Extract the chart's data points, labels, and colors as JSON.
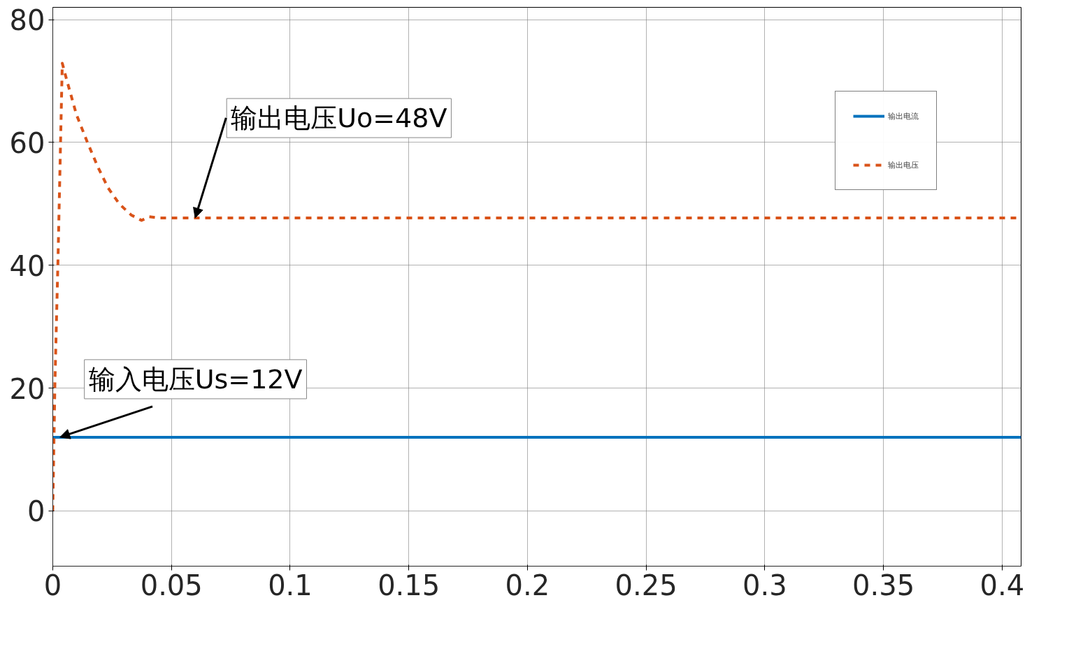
{
  "chart_data": {
    "type": "line",
    "xlim": [
      0,
      0.408
    ],
    "ylim": [
      -9,
      82
    ],
    "xticks": [
      0,
      0.05,
      0.1,
      0.15,
      0.2,
      0.25,
      0.3,
      0.35,
      0.4
    ],
    "yticks": [
      0,
      20,
      40,
      60,
      80
    ],
    "grid": true,
    "legend": "top right",
    "marker": "none",
    "series": [
      {
        "name": "输出电流",
        "color": "#0072bd",
        "line_style": "solid",
        "x": [
          0,
          0.408
        ],
        "values": [
          12,
          12
        ]
      },
      {
        "name": "输出电压",
        "color": "#d95319",
        "line_style": "dashed",
        "x": [
          0,
          0.0009,
          0.0022,
          0.004,
          0.006,
          0.01,
          0.0145,
          0.019,
          0.0233,
          0.028,
          0.033,
          0.0374,
          0.0405,
          0.045,
          0.408
        ],
        "values": [
          0,
          21,
          41,
          72.9,
          70,
          64.5,
          60.1,
          56,
          52.6,
          50,
          48.2,
          47.3,
          47.9,
          47.7,
          47.7
        ]
      }
    ],
    "annotations": [
      {
        "text": "输出电压Uo=48V",
        "x": 0.06,
        "y": 47.7
      },
      {
        "text": "输入电压Us=12V",
        "x": 0.003,
        "y": 12
      }
    ]
  }
}
